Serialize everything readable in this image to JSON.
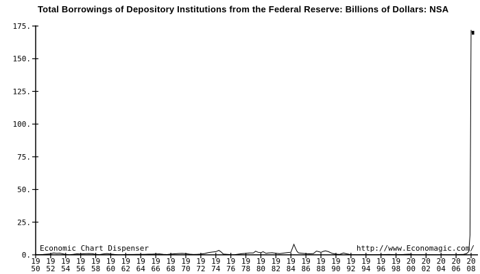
{
  "watermarks": {
    "left": "Economic Chart Dispenser",
    "right": "http://www.Economagic.com/"
  },
  "colors": {
    "background": "#ffffff",
    "line": "#000000",
    "axis": "#000000",
    "text": "#000000"
  },
  "chart_data": {
    "type": "line",
    "title": "Total Borrowings of Depository Institutions from the Federal Reserve: Billions of Dollars: NSA",
    "xlabel": "",
    "ylabel": "",
    "ylim": [
      0,
      175
    ],
    "xlim": [
      1950,
      2008
    ],
    "grid": false,
    "legend_position": "none",
    "y_ticks": [
      0,
      25,
      50,
      75,
      100,
      125,
      150,
      175
    ],
    "y_tick_labels": [
      "0.",
      "25.",
      "50.",
      "75.",
      "100.",
      "125.",
      "150.",
      "175."
    ],
    "x_ticks": [
      1950,
      1952,
      1954,
      1956,
      1958,
      1960,
      1962,
      1964,
      1966,
      1968,
      1970,
      1972,
      1974,
      1976,
      1978,
      1980,
      1982,
      1984,
      1986,
      1988,
      1990,
      1992,
      1994,
      1996,
      1998,
      2000,
      2002,
      2004,
      2006,
      2008
    ],
    "end_marker": {
      "year": 2008.05,
      "value": 170
    },
    "series": [
      {
        "name": "Total Borrowings of Depository Institutions (billions of dollars, NSA)",
        "points": [
          [
            1950,
            0.15
          ],
          [
            1950.5,
            0.2
          ],
          [
            1951,
            0.3
          ],
          [
            1951.5,
            0.5
          ],
          [
            1952,
            0.8
          ],
          [
            1952.4,
            1.4
          ],
          [
            1952.8,
            1.1
          ],
          [
            1953.2,
            1.3
          ],
          [
            1953.6,
            0.8
          ],
          [
            1954,
            0.3
          ],
          [
            1954.5,
            0.15
          ],
          [
            1955,
            0.4
          ],
          [
            1955.5,
            0.8
          ],
          [
            1956,
            0.7
          ],
          [
            1956.5,
            0.85
          ],
          [
            1957,
            1.0
          ],
          [
            1957.5,
            0.9
          ],
          [
            1958,
            0.35
          ],
          [
            1958.5,
            0.2
          ],
          [
            1959,
            0.7
          ],
          [
            1959.5,
            1.0
          ],
          [
            1960,
            0.6
          ],
          [
            1960.5,
            0.3
          ],
          [
            1961,
            0.15
          ],
          [
            1961.5,
            0.15
          ],
          [
            1962,
            0.3
          ],
          [
            1962.5,
            0.3
          ],
          [
            1963,
            0.3
          ],
          [
            1963.5,
            0.35
          ],
          [
            1964,
            0.4
          ],
          [
            1964.5,
            0.4
          ],
          [
            1965,
            0.5
          ],
          [
            1965.5,
            0.5
          ],
          [
            1966,
            0.7
          ],
          [
            1966.5,
            0.75
          ],
          [
            1967,
            0.4
          ],
          [
            1967.5,
            0.25
          ],
          [
            1968,
            0.6
          ],
          [
            1968.5,
            0.8
          ],
          [
            1969,
            1.0
          ],
          [
            1969.5,
            1.1
          ],
          [
            1970,
            0.9
          ],
          [
            1970.5,
            0.5
          ],
          [
            1971,
            0.3
          ],
          [
            1971.5,
            0.4
          ],
          [
            1972,
            0.6
          ],
          [
            1972.5,
            1.0
          ],
          [
            1973,
            1.7
          ],
          [
            1973.5,
            2.1
          ],
          [
            1974,
            2.4
          ],
          [
            1974.4,
            3.4
          ],
          [
            1974.7,
            2.2
          ],
          [
            1975,
            0.6
          ],
          [
            1975.5,
            0.35
          ],
          [
            1976,
            0.2
          ],
          [
            1976.5,
            0.15
          ],
          [
            1977,
            0.5
          ],
          [
            1977.5,
            0.9
          ],
          [
            1978,
            1.1
          ],
          [
            1978.5,
            1.4
          ],
          [
            1979,
            1.4
          ],
          [
            1979.3,
            2.8
          ],
          [
            1979.6,
            2.0
          ],
          [
            1980,
            1.6
          ],
          [
            1980.3,
            2.4
          ],
          [
            1980.7,
            1.1
          ],
          [
            1981,
            1.4
          ],
          [
            1981.5,
            1.6
          ],
          [
            1982,
            1.2
          ],
          [
            1982.5,
            0.9
          ],
          [
            1983,
            1.3
          ],
          [
            1983.5,
            1.7
          ],
          [
            1984,
            2.0
          ],
          [
            1984.4,
            8.0
          ],
          [
            1984.6,
            5.2
          ],
          [
            1984.8,
            2.8
          ],
          [
            1985,
            1.5
          ],
          [
            1985.5,
            1.2
          ],
          [
            1986,
            0.9
          ],
          [
            1986.5,
            0.8
          ],
          [
            1987,
            1.0
          ],
          [
            1987.4,
            2.9
          ],
          [
            1987.7,
            2.4
          ],
          [
            1988,
            1.9
          ],
          [
            1988.3,
            2.6
          ],
          [
            1988.6,
            3.1
          ],
          [
            1989,
            2.4
          ],
          [
            1989.5,
            1.1
          ],
          [
            1990,
            0.5
          ],
          [
            1990.5,
            0.3
          ],
          [
            1991,
            1.4
          ],
          [
            1991.4,
            0.8
          ],
          [
            1992,
            0.2
          ],
          [
            1993,
            0.15
          ],
          [
            1994,
            0.2
          ],
          [
            1995,
            0.15
          ],
          [
            1996,
            0.2
          ],
          [
            1997,
            0.3
          ],
          [
            1998,
            0.2
          ],
          [
            1999,
            0.3
          ],
          [
            1999.8,
            0.5
          ],
          [
            2000.2,
            0.2
          ],
          [
            2001,
            0.15
          ],
          [
            2002,
            0.1
          ],
          [
            2003,
            0.15
          ],
          [
            2004,
            0.1
          ],
          [
            2005,
            0.15
          ],
          [
            2006,
            0.2
          ],
          [
            2007,
            0.4
          ],
          [
            2007.4,
            0.9
          ],
          [
            2007.7,
            2.5
          ],
          [
            2007.85,
            15
          ],
          [
            2007.93,
            90
          ],
          [
            2008,
            172
          ],
          [
            2008.03,
            170
          ]
        ]
      }
    ]
  }
}
